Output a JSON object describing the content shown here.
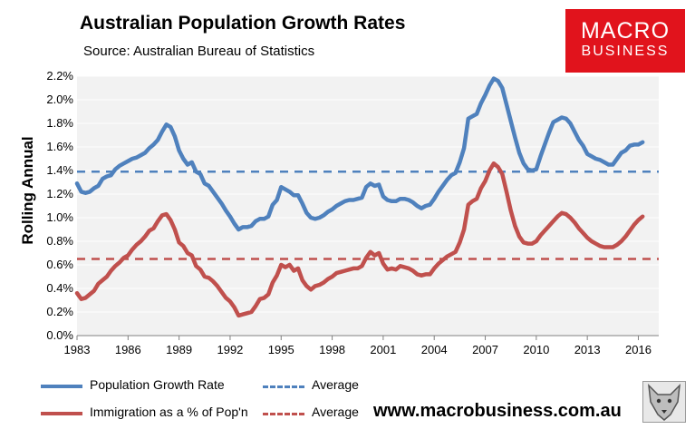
{
  "header": {
    "title": "Australian Population Growth Rates",
    "subtitle": "Source: Australian Bureau of Statistics"
  },
  "logo": {
    "line1": "MACRO",
    "line2": "BUSINESS"
  },
  "footer": {
    "url": "www.macrobusiness.com.au",
    "icon": "wolf-icon"
  },
  "colors": {
    "blue": "#4f81bd",
    "red": "#c0504d",
    "plot_bg": "#f2f2f2",
    "logo_bg": "#e1131c"
  },
  "legend": {
    "growth": "Population Growth Rate",
    "growth_avg": "Average",
    "immigration": "Immigration as a % of Pop'n",
    "immigration_avg": "Average"
  },
  "chart_data": {
    "type": "line",
    "title": "Australian Population Growth Rates",
    "xlabel": "",
    "ylabel": "Rolling Annual",
    "xlim": [
      1983,
      2017.2
    ],
    "ylim": [
      0,
      2.2
    ],
    "xticks": [
      "1983",
      "1986",
      "1989",
      "1992",
      "1995",
      "1998",
      "2001",
      "2004",
      "2007",
      "2010",
      "2013",
      "2016"
    ],
    "yticks": [
      "0.0%",
      "0.2%",
      "0.4%",
      "0.6%",
      "0.8%",
      "1.0%",
      "1.2%",
      "1.4%",
      "1.6%",
      "1.8%",
      "2.0%",
      "2.2%"
    ],
    "series": [
      {
        "name": "Population Growth Rate",
        "color": "#4f81bd",
        "points": [
          [
            1983.0,
            1.29
          ],
          [
            1983.25,
            1.22
          ],
          [
            1983.5,
            1.21
          ],
          [
            1983.75,
            1.22
          ],
          [
            1984.0,
            1.25
          ],
          [
            1984.25,
            1.27
          ],
          [
            1984.5,
            1.33
          ],
          [
            1984.75,
            1.35
          ],
          [
            1985.0,
            1.36
          ],
          [
            1985.25,
            1.41
          ],
          [
            1985.5,
            1.44
          ],
          [
            1985.75,
            1.46
          ],
          [
            1986.0,
            1.48
          ],
          [
            1986.25,
            1.5
          ],
          [
            1986.5,
            1.51
          ],
          [
            1986.75,
            1.53
          ],
          [
            1987.0,
            1.55
          ],
          [
            1987.25,
            1.59
          ],
          [
            1987.5,
            1.62
          ],
          [
            1987.75,
            1.66
          ],
          [
            1988.0,
            1.73
          ],
          [
            1988.25,
            1.79
          ],
          [
            1988.5,
            1.77
          ],
          [
            1988.75,
            1.69
          ],
          [
            1989.0,
            1.57
          ],
          [
            1989.25,
            1.5
          ],
          [
            1989.5,
            1.45
          ],
          [
            1989.75,
            1.47
          ],
          [
            1990.0,
            1.39
          ],
          [
            1990.25,
            1.37
          ],
          [
            1990.5,
            1.29
          ],
          [
            1990.75,
            1.27
          ],
          [
            1991.0,
            1.22
          ],
          [
            1991.25,
            1.17
          ],
          [
            1991.5,
            1.12
          ],
          [
            1991.75,
            1.06
          ],
          [
            1992.0,
            1.01
          ],
          [
            1992.25,
            0.95
          ],
          [
            1992.5,
            0.9
          ],
          [
            1992.75,
            0.92
          ],
          [
            1993.0,
            0.92
          ],
          [
            1993.25,
            0.93
          ],
          [
            1993.5,
            0.97
          ],
          [
            1993.75,
            0.99
          ],
          [
            1994.0,
            0.99
          ],
          [
            1994.25,
            1.01
          ],
          [
            1994.5,
            1.11
          ],
          [
            1994.75,
            1.15
          ],
          [
            1995.0,
            1.26
          ],
          [
            1995.25,
            1.24
          ],
          [
            1995.5,
            1.22
          ],
          [
            1995.75,
            1.19
          ],
          [
            1996.0,
            1.19
          ],
          [
            1996.25,
            1.12
          ],
          [
            1996.5,
            1.04
          ],
          [
            1996.75,
            1.0
          ],
          [
            1997.0,
            0.99
          ],
          [
            1997.25,
            1.0
          ],
          [
            1997.5,
            1.02
          ],
          [
            1997.75,
            1.05
          ],
          [
            1998.0,
            1.07
          ],
          [
            1998.25,
            1.1
          ],
          [
            1998.5,
            1.12
          ],
          [
            1998.75,
            1.14
          ],
          [
            1999.0,
            1.15
          ],
          [
            1999.25,
            1.15
          ],
          [
            1999.5,
            1.16
          ],
          [
            1999.75,
            1.17
          ],
          [
            2000.0,
            1.26
          ],
          [
            2000.25,
            1.29
          ],
          [
            2000.5,
            1.27
          ],
          [
            2000.75,
            1.28
          ],
          [
            2001.0,
            1.18
          ],
          [
            2001.25,
            1.15
          ],
          [
            2001.5,
            1.14
          ],
          [
            2001.75,
            1.14
          ],
          [
            2002.0,
            1.16
          ],
          [
            2002.25,
            1.16
          ],
          [
            2002.5,
            1.15
          ],
          [
            2002.75,
            1.13
          ],
          [
            2003.0,
            1.1
          ],
          [
            2003.25,
            1.08
          ],
          [
            2003.5,
            1.1
          ],
          [
            2003.75,
            1.11
          ],
          [
            2004.0,
            1.16
          ],
          [
            2004.25,
            1.22
          ],
          [
            2004.5,
            1.27
          ],
          [
            2004.75,
            1.32
          ],
          [
            2005.0,
            1.36
          ],
          [
            2005.25,
            1.38
          ],
          [
            2005.5,
            1.47
          ],
          [
            2005.75,
            1.59
          ],
          [
            2006.0,
            1.84
          ],
          [
            2006.25,
            1.86
          ],
          [
            2006.5,
            1.88
          ],
          [
            2006.75,
            1.97
          ],
          [
            2007.0,
            2.04
          ],
          [
            2007.25,
            2.12
          ],
          [
            2007.5,
            2.18
          ],
          [
            2007.75,
            2.16
          ],
          [
            2008.0,
            2.1
          ],
          [
            2008.25,
            1.96
          ],
          [
            2008.5,
            1.82
          ],
          [
            2008.75,
            1.68
          ],
          [
            2009.0,
            1.55
          ],
          [
            2009.25,
            1.46
          ],
          [
            2009.5,
            1.41
          ],
          [
            2009.75,
            1.4
          ],
          [
            2010.0,
            1.41
          ],
          [
            2010.25,
            1.52
          ],
          [
            2010.5,
            1.62
          ],
          [
            2010.75,
            1.72
          ],
          [
            2011.0,
            1.81
          ],
          [
            2011.25,
            1.83
          ],
          [
            2011.5,
            1.85
          ],
          [
            2011.75,
            1.84
          ],
          [
            2012.0,
            1.8
          ],
          [
            2012.25,
            1.73
          ],
          [
            2012.5,
            1.66
          ],
          [
            2012.75,
            1.61
          ],
          [
            2013.0,
            1.54
          ],
          [
            2013.25,
            1.52
          ],
          [
            2013.5,
            1.5
          ],
          [
            2013.75,
            1.49
          ],
          [
            2014.0,
            1.47
          ],
          [
            2014.25,
            1.45
          ],
          [
            2014.5,
            1.45
          ],
          [
            2014.75,
            1.5
          ],
          [
            2015.0,
            1.55
          ],
          [
            2015.25,
            1.57
          ],
          [
            2015.5,
            1.61
          ],
          [
            2015.75,
            1.62
          ],
          [
            2016.0,
            1.62
          ],
          [
            2016.25,
            1.64
          ]
        ]
      },
      {
        "name": "Immigration as a % of Pop'n",
        "color": "#c0504d",
        "points": [
          [
            1983.0,
            0.36
          ],
          [
            1983.25,
            0.31
          ],
          [
            1983.5,
            0.32
          ],
          [
            1983.75,
            0.35
          ],
          [
            1984.0,
            0.38
          ],
          [
            1984.25,
            0.44
          ],
          [
            1984.5,
            0.47
          ],
          [
            1984.75,
            0.5
          ],
          [
            1985.0,
            0.55
          ],
          [
            1985.25,
            0.59
          ],
          [
            1985.5,
            0.62
          ],
          [
            1985.75,
            0.66
          ],
          [
            1986.0,
            0.68
          ],
          [
            1986.25,
            0.73
          ],
          [
            1986.5,
            0.77
          ],
          [
            1986.75,
            0.8
          ],
          [
            1987.0,
            0.84
          ],
          [
            1987.25,
            0.89
          ],
          [
            1987.5,
            0.91
          ],
          [
            1987.75,
            0.97
          ],
          [
            1988.0,
            1.02
          ],
          [
            1988.25,
            1.03
          ],
          [
            1988.5,
            0.98
          ],
          [
            1988.75,
            0.9
          ],
          [
            1989.0,
            0.79
          ],
          [
            1989.25,
            0.76
          ],
          [
            1989.5,
            0.7
          ],
          [
            1989.75,
            0.68
          ],
          [
            1990.0,
            0.59
          ],
          [
            1990.25,
            0.56
          ],
          [
            1990.5,
            0.5
          ],
          [
            1990.75,
            0.49
          ],
          [
            1991.0,
            0.46
          ],
          [
            1991.25,
            0.42
          ],
          [
            1991.5,
            0.37
          ],
          [
            1991.75,
            0.32
          ],
          [
            1992.0,
            0.29
          ],
          [
            1992.25,
            0.24
          ],
          [
            1992.5,
            0.17
          ],
          [
            1992.75,
            0.18
          ],
          [
            1993.0,
            0.19
          ],
          [
            1993.25,
            0.2
          ],
          [
            1993.5,
            0.25
          ],
          [
            1993.75,
            0.31
          ],
          [
            1994.0,
            0.32
          ],
          [
            1994.25,
            0.35
          ],
          [
            1994.5,
            0.45
          ],
          [
            1994.75,
            0.51
          ],
          [
            1995.0,
            0.6
          ],
          [
            1995.25,
            0.58
          ],
          [
            1995.5,
            0.6
          ],
          [
            1995.75,
            0.55
          ],
          [
            1996.0,
            0.57
          ],
          [
            1996.25,
            0.47
          ],
          [
            1996.5,
            0.42
          ],
          [
            1996.75,
            0.39
          ],
          [
            1997.0,
            0.42
          ],
          [
            1997.25,
            0.43
          ],
          [
            1997.5,
            0.45
          ],
          [
            1997.75,
            0.48
          ],
          [
            1998.0,
            0.5
          ],
          [
            1998.25,
            0.53
          ],
          [
            1998.5,
            0.54
          ],
          [
            1998.75,
            0.55
          ],
          [
            1999.0,
            0.56
          ],
          [
            1999.25,
            0.57
          ],
          [
            1999.5,
            0.57
          ],
          [
            1999.75,
            0.59
          ],
          [
            2000.0,
            0.66
          ],
          [
            2000.25,
            0.71
          ],
          [
            2000.5,
            0.68
          ],
          [
            2000.75,
            0.7
          ],
          [
            2001.0,
            0.61
          ],
          [
            2001.25,
            0.56
          ],
          [
            2001.5,
            0.57
          ],
          [
            2001.75,
            0.56
          ],
          [
            2002.0,
            0.59
          ],
          [
            2002.25,
            0.58
          ],
          [
            2002.5,
            0.57
          ],
          [
            2002.75,
            0.55
          ],
          [
            2003.0,
            0.52
          ],
          [
            2003.25,
            0.51
          ],
          [
            2003.5,
            0.52
          ],
          [
            2003.75,
            0.52
          ],
          [
            2004.0,
            0.57
          ],
          [
            2004.25,
            0.61
          ],
          [
            2004.5,
            0.64
          ],
          [
            2004.75,
            0.67
          ],
          [
            2005.0,
            0.69
          ],
          [
            2005.25,
            0.71
          ],
          [
            2005.5,
            0.79
          ],
          [
            2005.75,
            0.9
          ],
          [
            2006.0,
            1.11
          ],
          [
            2006.25,
            1.14
          ],
          [
            2006.5,
            1.16
          ],
          [
            2006.75,
            1.25
          ],
          [
            2007.0,
            1.31
          ],
          [
            2007.25,
            1.4
          ],
          [
            2007.5,
            1.46
          ],
          [
            2007.75,
            1.43
          ],
          [
            2008.0,
            1.37
          ],
          [
            2008.25,
            1.22
          ],
          [
            2008.5,
            1.06
          ],
          [
            2008.75,
            0.93
          ],
          [
            2009.0,
            0.84
          ],
          [
            2009.25,
            0.79
          ],
          [
            2009.5,
            0.78
          ],
          [
            2009.75,
            0.78
          ],
          [
            2010.0,
            0.8
          ],
          [
            2010.25,
            0.85
          ],
          [
            2010.5,
            0.89
          ],
          [
            2010.75,
            0.93
          ],
          [
            2011.0,
            0.97
          ],
          [
            2011.25,
            1.01
          ],
          [
            2011.5,
            1.04
          ],
          [
            2011.75,
            1.03
          ],
          [
            2012.0,
            1.0
          ],
          [
            2012.25,
            0.96
          ],
          [
            2012.5,
            0.91
          ],
          [
            2012.75,
            0.87
          ],
          [
            2013.0,
            0.83
          ],
          [
            2013.25,
            0.8
          ],
          [
            2013.5,
            0.78
          ],
          [
            2013.75,
            0.76
          ],
          [
            2014.0,
            0.75
          ],
          [
            2014.25,
            0.75
          ],
          [
            2014.5,
            0.75
          ],
          [
            2014.75,
            0.77
          ],
          [
            2015.0,
            0.8
          ],
          [
            2015.25,
            0.84
          ],
          [
            2015.5,
            0.89
          ],
          [
            2015.75,
            0.94
          ],
          [
            2016.0,
            0.98
          ],
          [
            2016.25,
            1.01
          ]
        ]
      }
    ],
    "reference_lines": [
      {
        "name": "Average",
        "applies_to": "Population Growth Rate",
        "y": 1.39,
        "style": "dashed",
        "color": "#4f81bd"
      },
      {
        "name": "Average",
        "applies_to": "Immigration as a % of Pop'n",
        "y": 0.65,
        "style": "dashed",
        "color": "#c0504d"
      }
    ]
  }
}
